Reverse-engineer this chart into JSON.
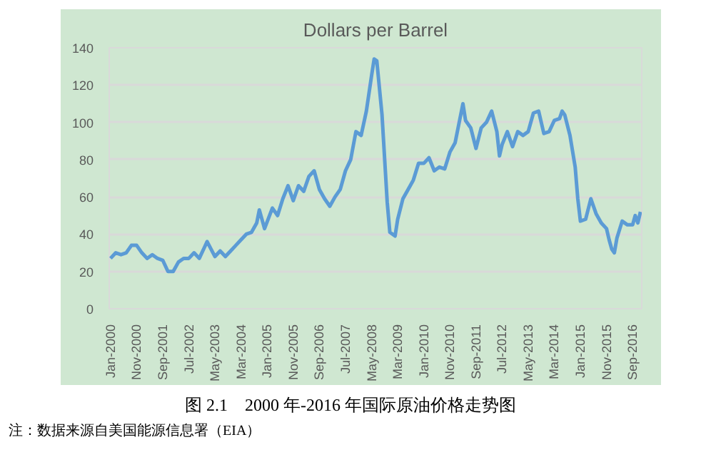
{
  "chart_data": {
    "type": "line",
    "title": "Dollars per Barrel",
    "annotations": [
      "图 2.1　2000 年-2016 年国际原油价格走势图",
      "注：数据来源自美国能源信息署（EIA）"
    ],
    "x": [
      "2000-01",
      "2000-03",
      "2000-05",
      "2000-07",
      "2000-09",
      "2000-11",
      "2001-01",
      "2001-03",
      "2001-05",
      "2001-07",
      "2001-09",
      "2001-11",
      "2002-01",
      "2002-03",
      "2002-05",
      "2002-07",
      "2002-09",
      "2002-11",
      "2003-01",
      "2003-02",
      "2003-05",
      "2003-07",
      "2003-09",
      "2003-11",
      "2004-01",
      "2004-03",
      "2004-05",
      "2004-07",
      "2004-09",
      "2004-10",
      "2004-12",
      "2005-03",
      "2005-05",
      "2005-07",
      "2005-09",
      "2005-11",
      "2006-01",
      "2006-03",
      "2006-05",
      "2006-07",
      "2006-09",
      "2006-11",
      "2007-01",
      "2007-03",
      "2007-05",
      "2007-07",
      "2007-09",
      "2007-11",
      "2008-01",
      "2008-03",
      "2008-05",
      "2008-06",
      "2008-07",
      "2008-09",
      "2008-11",
      "2008-12",
      "2009-02",
      "2009-03",
      "2009-05",
      "2009-07",
      "2009-09",
      "2009-11",
      "2010-01",
      "2010-03",
      "2010-05",
      "2010-07",
      "2010-09",
      "2010-11",
      "2011-01",
      "2011-03",
      "2011-04",
      "2011-05",
      "2011-07",
      "2011-09",
      "2011-11",
      "2012-01",
      "2012-03",
      "2012-05",
      "2012-06",
      "2012-07",
      "2012-09",
      "2012-11",
      "2013-01",
      "2013-03",
      "2013-05",
      "2013-07",
      "2013-09",
      "2013-11",
      "2014-01",
      "2014-03",
      "2014-05",
      "2014-06",
      "2014-07",
      "2014-09",
      "2014-11",
      "2014-12",
      "2015-01",
      "2015-03",
      "2015-05",
      "2015-07",
      "2015-09",
      "2015-11",
      "2015-12",
      "2016-01",
      "2016-02",
      "2016-03",
      "2016-05",
      "2016-07",
      "2016-09",
      "2016-10",
      "2016-11",
      "2016-12"
    ],
    "series": [
      {
        "color": "#5b9bd5",
        "values": [
          27,
          30,
          29,
          30,
          34,
          34,
          30,
          27,
          29,
          27,
          26,
          20,
          20,
          25,
          27,
          27,
          30,
          27,
          33,
          36,
          28,
          31,
          28,
          31,
          34,
          37,
          40,
          41,
          46,
          53,
          43,
          54,
          50,
          59,
          66,
          58,
          66,
          63,
          71,
          74,
          64,
          59,
          55,
          60,
          64,
          74,
          80,
          95,
          93,
          106,
          125,
          134,
          133,
          104,
          57,
          41,
          39,
          48,
          59,
          64,
          69,
          78,
          78,
          81,
          74,
          76,
          75,
          84,
          89,
          103,
          110,
          101,
          97,
          86,
          97,
          100,
          106,
          95,
          82,
          88,
          95,
          87,
          95,
          93,
          95,
          105,
          106,
          94,
          95,
          101,
          102,
          106,
          104,
          93,
          76,
          59,
          47,
          48,
          59,
          51,
          46,
          43,
          37,
          32,
          30,
          38,
          47,
          45,
          45,
          50,
          46,
          52
        ]
      }
    ],
    "xlim": [
      "2000-01",
      "2016-12"
    ],
    "xticks": [
      {
        "value": "2000-01",
        "label": "Jan-2000"
      },
      {
        "value": "2000-11",
        "label": "Nov-2000"
      },
      {
        "value": "2001-09",
        "label": "Sep-2001"
      },
      {
        "value": "2002-07",
        "label": "Jul-2002"
      },
      {
        "value": "2003-05",
        "label": "May-2003"
      },
      {
        "value": "2004-03",
        "label": "Mar-2004"
      },
      {
        "value": "2005-01",
        "label": "Jan-2005"
      },
      {
        "value": "2005-11",
        "label": "Nov-2005"
      },
      {
        "value": "2006-09",
        "label": "Sep-2006"
      },
      {
        "value": "2007-07",
        "label": "Jul-2007"
      },
      {
        "value": "2008-05",
        "label": "May-2008"
      },
      {
        "value": "2009-03",
        "label": "Mar-2009"
      },
      {
        "value": "2010-01",
        "label": "Jan-2010"
      },
      {
        "value": "2010-11",
        "label": "Nov-2010"
      },
      {
        "value": "2011-09",
        "label": "Sep-2011"
      },
      {
        "value": "2012-07",
        "label": "Jul-2012"
      },
      {
        "value": "2013-05",
        "label": "May-2013"
      },
      {
        "value": "2014-03",
        "label": "Mar-2014"
      },
      {
        "value": "2015-01",
        "label": "Jan-2015"
      },
      {
        "value": "2015-11",
        "label": "Nov-2015"
      },
      {
        "value": "2016-09",
        "label": "Sep-2016"
      }
    ],
    "ylim": [
      0,
      140
    ],
    "yticks": [
      0,
      20,
      40,
      60,
      80,
      100,
      120,
      140
    ],
    "grid": "y",
    "marker": "none",
    "line_style": "solid"
  }
}
